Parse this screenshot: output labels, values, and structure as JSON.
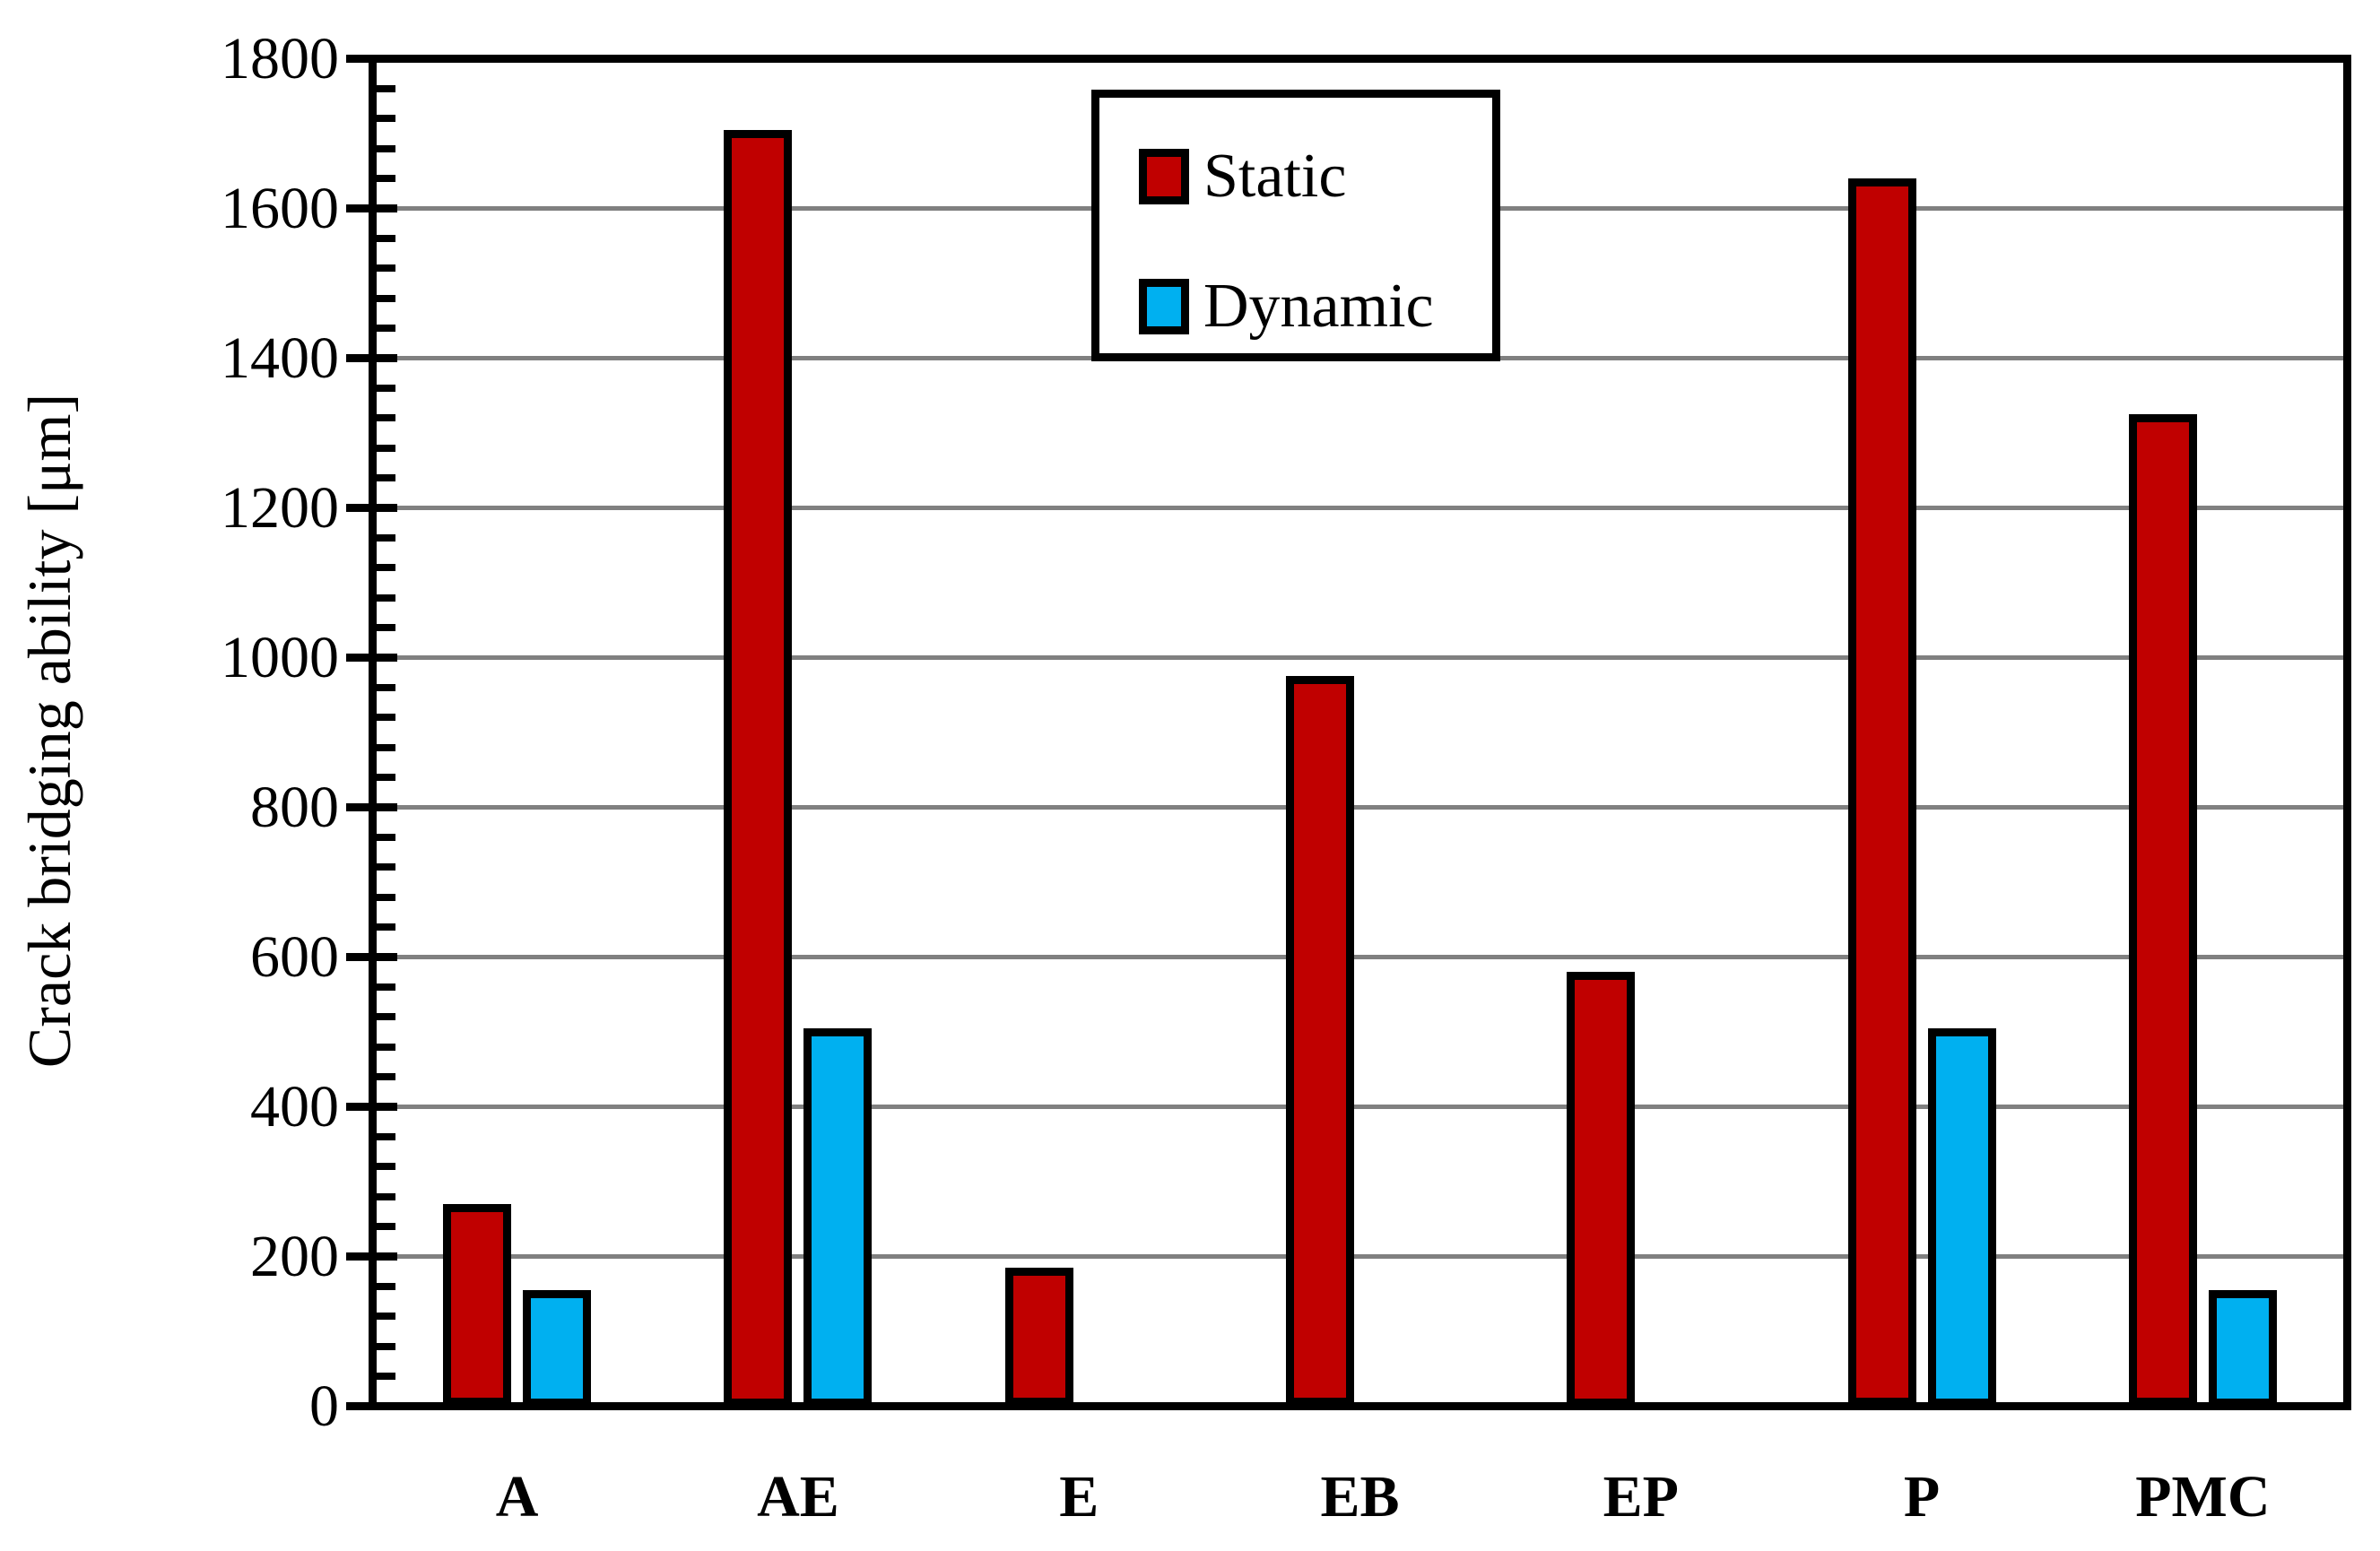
{
  "chart_data": {
    "type": "bar",
    "title": "",
    "xlabel": "",
    "ylabel": "Crack bridging ability [μm]",
    "categories": [
      "A",
      "AE",
      "E",
      "EB",
      "EP",
      "P",
      "PMC"
    ],
    "series": [
      {
        "name": "Static",
        "color": "#C00000",
        "values": [
          265,
          1700,
          180,
          970,
          575,
          1635,
          1320
        ]
      },
      {
        "name": "Dynamic",
        "color": "#00B0F0",
        "values": [
          150,
          500,
          0,
          0,
          0,
          500,
          150
        ]
      }
    ],
    "ylim": [
      0,
      1800
    ],
    "y_major_unit": 200,
    "y_minor_unit": 40,
    "y_tick_labels": [
      "0",
      "200",
      "400",
      "600",
      "800",
      "1000",
      "1200",
      "1400",
      "1600",
      "1800"
    ],
    "grid": "horizontal-major-only",
    "gridline_color": "#808080",
    "bar_edge_color": "#000000",
    "legend_position": "top-center-inside",
    "legend": {
      "items": [
        {
          "label": "Static",
          "swatch_color": "#C00000"
        },
        {
          "label": "Dynamic",
          "swatch_color": "#00B0F0"
        }
      ]
    }
  }
}
